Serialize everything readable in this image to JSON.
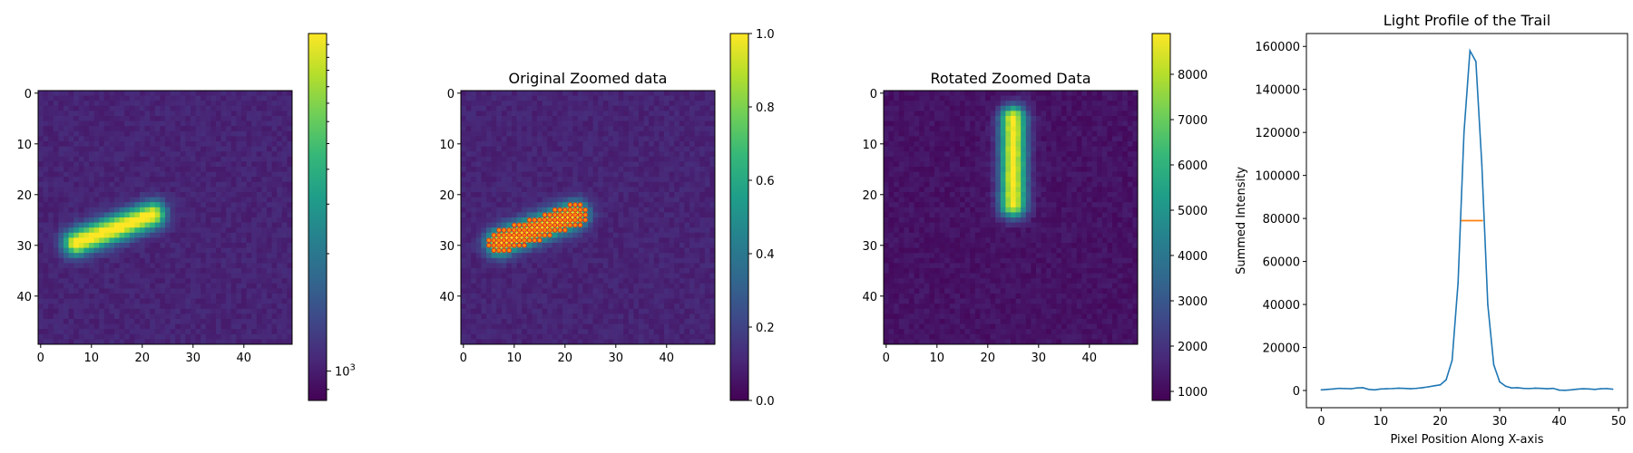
{
  "figure": {
    "background": "#ffffff"
  },
  "colors": {
    "viridis": [
      "#440154",
      "#482878",
      "#3e4989",
      "#31688e",
      "#26828e",
      "#1f9e89",
      "#35b779",
      "#6ece58",
      "#b5de2b",
      "#fde725"
    ],
    "profile_line": "#1f77b4",
    "fwhm_line": "#ff7f0e",
    "marker_fill": "#ff8c00",
    "marker_edge": "#d62728"
  },
  "chart_data": [
    {
      "id": "panel-1",
      "type": "heatmap",
      "title": "",
      "xlabel": "",
      "ylabel": "",
      "grid_size": 50,
      "xticks": [
        0,
        10,
        20,
        30,
        40
      ],
      "yticks": [
        0,
        10,
        20,
        30,
        40
      ],
      "trail": {
        "x1": 7,
        "y1": 29.5,
        "x2": 22,
        "y2": 24,
        "half_width": 1.8,
        "background": 0.1
      },
      "colorbar": {
        "scale": "log",
        "tick_labels": [
          {
            "base": "10",
            "exp": "3"
          }
        ],
        "minor_ticks": 8
      }
    },
    {
      "id": "panel-2",
      "type": "heatmap",
      "title": "Original Zoomed data",
      "xlabel": "",
      "ylabel": "",
      "grid_size": 50,
      "xticks": [
        0,
        10,
        20,
        30,
        40
      ],
      "yticks": [
        0,
        10,
        20,
        30,
        40
      ],
      "trail": {
        "x1": 7,
        "y1": 29.5,
        "x2": 22,
        "y2": 24,
        "half_width": 1.8,
        "background": 0.1
      },
      "overlay_points": {
        "description": "red/orange dots marking pixels above threshold",
        "count_rows": 5
      },
      "colorbar": {
        "scale": "linear",
        "range": [
          0.0,
          1.0
        ],
        "tick_labels": [
          "0.0",
          "0.2",
          "0.4",
          "0.6",
          "0.8",
          "1.0"
        ]
      }
    },
    {
      "id": "panel-3",
      "type": "heatmap",
      "title": "Rotated Zoomed Data",
      "xlabel": "",
      "ylabel": "",
      "grid_size": 50,
      "xticks": [
        0,
        10,
        20,
        30,
        40
      ],
      "yticks": [
        0,
        10,
        20,
        30,
        40
      ],
      "trail": {
        "x1": 25,
        "y1": 5,
        "x2": 25,
        "y2": 22,
        "half_width": 1.8,
        "background": 0.05
      },
      "colorbar": {
        "scale": "linear",
        "range": [
          800,
          8900
        ],
        "ticks": [
          1000,
          2000,
          3000,
          4000,
          5000,
          6000,
          7000,
          8000
        ],
        "tick_labels": [
          "1000",
          "2000",
          "3000",
          "4000",
          "5000",
          "6000",
          "7000",
          "8000"
        ]
      }
    },
    {
      "id": "panel-4",
      "type": "line",
      "title": "Light Profile of the Trail",
      "xlabel": "Pixel Position Along X-axis",
      "ylabel": "Summed Intensity",
      "xlim": [
        -2.5,
        51.5
      ],
      "ylim": [
        -8000,
        166000
      ],
      "xticks": [
        0,
        10,
        20,
        30,
        40,
        50
      ],
      "xtick_labels": [
        "0",
        "10",
        "20",
        "30",
        "40",
        "50"
      ],
      "yticks": [
        0,
        20000,
        40000,
        60000,
        80000,
        100000,
        120000,
        140000,
        160000
      ],
      "ytick_labels": [
        "0",
        "20000",
        "40000",
        "60000",
        "80000",
        "100000",
        "120000",
        "140000",
        "160000"
      ],
      "series": [
        {
          "name": "profile",
          "x": [
            0,
            1,
            2,
            3,
            4,
            5,
            6,
            7,
            8,
            9,
            10,
            11,
            12,
            13,
            14,
            15,
            16,
            17,
            18,
            19,
            20,
            21,
            22,
            23,
            24,
            25,
            26,
            27,
            28,
            29,
            30,
            31,
            32,
            33,
            34,
            35,
            36,
            37,
            38,
            39,
            40,
            41,
            42,
            43,
            44,
            45,
            46,
            47,
            48,
            49
          ],
          "values": [
            300,
            500,
            700,
            1000,
            900,
            800,
            1200,
            1300,
            500,
            300,
            700,
            800,
            900,
            1100,
            1000,
            800,
            1000,
            1300,
            1700,
            2200,
            2600,
            5000,
            14000,
            50000,
            120000,
            158000,
            153000,
            105000,
            40000,
            12000,
            4000,
            2000,
            1200,
            1300,
            1000,
            900,
            1100,
            1000,
            800,
            1000,
            200,
            100,
            300,
            600,
            800,
            700,
            500,
            800,
            900,
            600
          ]
        }
      ],
      "fwhm": {
        "x_start": 23.5,
        "x_end": 27.2,
        "y": 79000
      }
    }
  ]
}
